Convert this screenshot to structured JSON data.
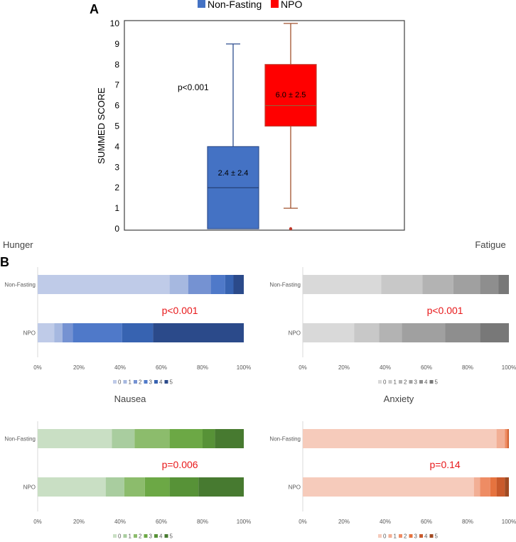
{
  "panel_a": {
    "letter": "A",
    "legend": [
      {
        "label": "Non-Fasting",
        "color": "#4472c4"
      },
      {
        "label": "NPO",
        "color": "#ff0000"
      }
    ],
    "ylabel": "SUMMED SCORE",
    "pvalue": "p<0.001",
    "nonfasting_stat": "2.4 ± 2.4",
    "npo_stat": "6.0 ± 2.5"
  },
  "panel_b": {
    "letter": "B"
  },
  "chart_data": [
    {
      "type": "box",
      "title": "",
      "ylabel": "SUMMED SCORE",
      "ylim": [
        0,
        10
      ],
      "yticks": [
        "0",
        "1",
        "2",
        "3",
        "4",
        "5",
        "6",
        "7",
        "8",
        "9",
        "10"
      ],
      "series": [
        {
          "name": "Non-Fasting",
          "color": "#4472c4",
          "border": "#2f4f8f",
          "min": 0,
          "q1": 0,
          "median": 2,
          "q3": 4,
          "max": 9,
          "outliers": [],
          "label": "2.4 ± 2.4"
        },
        {
          "name": "NPO",
          "color": "#ff0000",
          "border": "#c0392b",
          "whisker": "#a0522d",
          "min": 1,
          "q1": 5,
          "median": 6,
          "q3": 8,
          "max": 10,
          "outliers": [
            0
          ],
          "label": "6.0 ± 2.5"
        }
      ]
    },
    {
      "type": "stacked-bar-100",
      "title": "Hunger",
      "categories": [
        "Non-Fasting",
        "NPO"
      ],
      "legend": [
        "0",
        "1",
        "2",
        "3",
        "4",
        "5"
      ],
      "colors": [
        "#bfcbe8",
        "#a6b8e0",
        "#7592d2",
        "#4f79c9",
        "#3763b1",
        "#2b4a8a"
      ],
      "values": [
        [
          64,
          9,
          11,
          7,
          4,
          5
        ],
        [
          8,
          4,
          5,
          24,
          15,
          44
        ]
      ],
      "pvalue": "p<0.001",
      "xticks": [
        "0%",
        "20%",
        "40%",
        "60%",
        "80%",
        "100%"
      ]
    },
    {
      "type": "stacked-bar-100",
      "title": "Fatigue",
      "categories": [
        "Non-Fasting",
        "NPO"
      ],
      "legend": [
        "0",
        "1",
        "2",
        "3",
        "4",
        "5"
      ],
      "colors": [
        "#d9d9d9",
        "#c8c8c8",
        "#b3b3b3",
        "#a0a0a0",
        "#8e8e8e",
        "#787878"
      ],
      "values": [
        [
          38,
          20,
          15,
          13,
          9,
          5
        ],
        [
          25,
          12,
          11,
          21,
          17,
          14
        ]
      ],
      "pvalue": "p<0.001",
      "xticks": [
        "0%",
        "20%",
        "40%",
        "60%",
        "80%",
        "100%"
      ]
    },
    {
      "type": "stacked-bar-100",
      "title": "Nausea",
      "categories": [
        "Non-Fasting",
        "NPO"
      ],
      "legend": [
        "0",
        "1",
        "2",
        "3",
        "4",
        "5"
      ],
      "colors": [
        "#c9dfc4",
        "#a9cd9f",
        "#8cbc6c",
        "#6ca845",
        "#579237",
        "#477a30"
      ],
      "values": [
        [
          36,
          11,
          17,
          16,
          6,
          14
        ],
        [
          33,
          9,
          10,
          12,
          14,
          22
        ]
      ],
      "pvalue": "p=0.006",
      "xticks": [
        "0%",
        "20%",
        "40%",
        "60%",
        "80%",
        "100%"
      ]
    },
    {
      "type": "stacked-bar-100",
      "title": "Anxiety",
      "categories": [
        "Non-Fasting",
        "NPO"
      ],
      "legend": [
        "0",
        "1",
        "2",
        "3",
        "4",
        "5"
      ],
      "colors": [
        "#f6cbbb",
        "#f2af95",
        "#ee8c64",
        "#e6733f",
        "#c95a2c",
        "#a14a22"
      ],
      "values": [
        [
          94,
          4,
          1,
          0.5,
          0.5,
          0
        ],
        [
          83,
          3,
          5,
          3,
          4,
          2
        ]
      ],
      "pvalue": "p=0.14",
      "xticks": [
        "0%",
        "20%",
        "40%",
        "60%",
        "80%",
        "100%"
      ]
    }
  ]
}
